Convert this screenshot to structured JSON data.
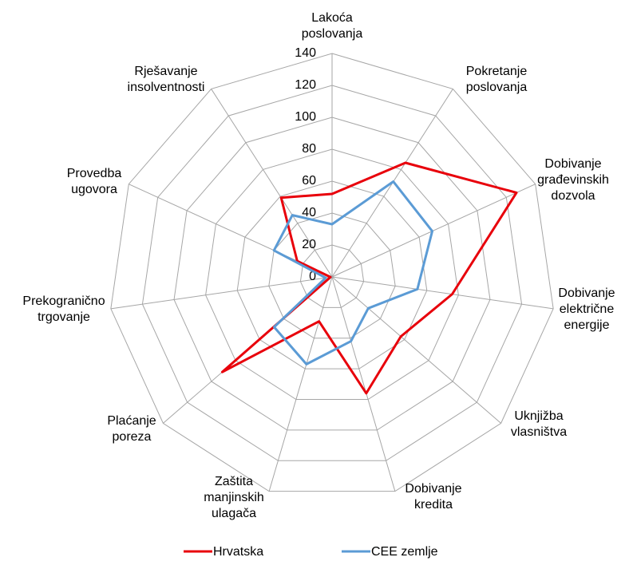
{
  "chart_data": {
    "type": "radar",
    "categories": [
      "Lakoća\nposlovanja",
      "Pokretanje\nposlovanja",
      "Dobivanje\ngrađevinskih\ndozvola",
      "Dobivanje\nelektrične\nenergije",
      "Uknjižba\nvlasništva",
      "Dobivanje\nkredita",
      "Zaštita\nmanjinskih\nulagača",
      "Plaćanje\nporeza",
      "Prekogranično\ntrgovanje",
      "Provedba\nugovora",
      "Rješavanje\ninsolventnosti"
    ],
    "series": [
      {
        "name": "Hrvatska",
        "color": "#e8000b",
        "values": [
          52,
          85,
          127,
          76,
          57,
          76,
          29,
          91,
          1,
          24,
          59
        ]
      },
      {
        "name": "CEE zemlje",
        "color": "#5b9bd5",
        "values": [
          33,
          71,
          69,
          54,
          30,
          42,
          57,
          48,
          4,
          40,
          46
        ]
      }
    ],
    "ylim": [
      0,
      140
    ],
    "yticks": [
      0,
      20,
      40,
      60,
      80,
      100,
      120,
      140
    ],
    "grid": true,
    "legend": "bottom"
  }
}
